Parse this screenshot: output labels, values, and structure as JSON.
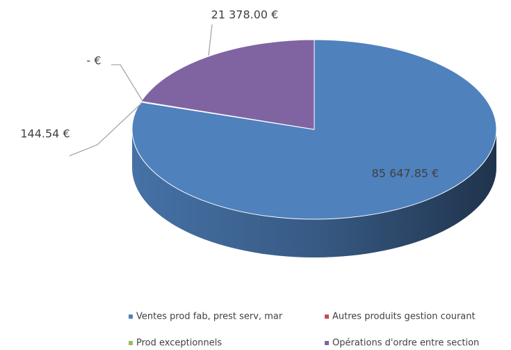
{
  "chart_data": {
    "type": "pie3d",
    "categories": [
      "Ventes prod fab, prest serv, mar",
      "Autres produits gestion courant",
      "Prod exceptionnels",
      "Opérations d'ordre entre section"
    ],
    "series": [
      {
        "values": [
          85647.85,
          144.54,
          0,
          21378.0
        ],
        "value_labels": [
          "85 647.85 €",
          "144.54 €",
          "-   €",
          "21 378.00 €"
        ],
        "colors": [
          "#4f81bd",
          "#c0504d",
          "#9bbb59",
          "#8064a2"
        ]
      }
    ],
    "legend": "bottom"
  }
}
